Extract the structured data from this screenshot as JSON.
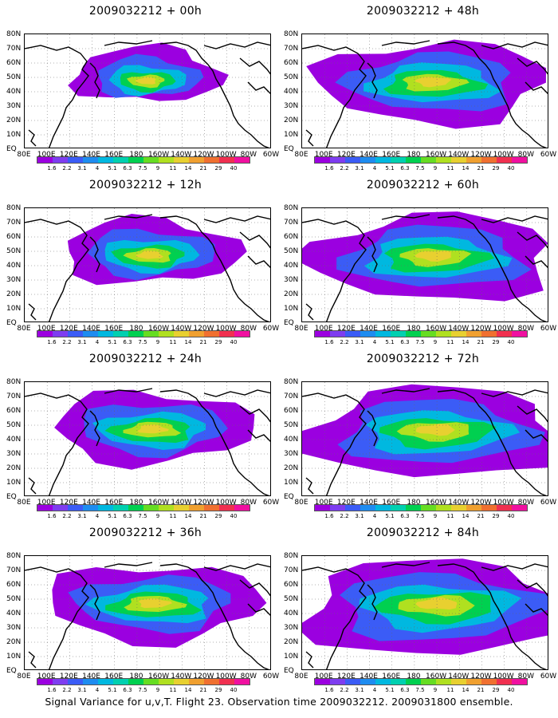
{
  "caption": "Signal Variance for u,v,T. Flight 23. Observation time 2009032212. 2009031800 ensemble.",
  "lat_labels": [
    "80N",
    "70N",
    "60N",
    "50N",
    "40N",
    "30N",
    "20N",
    "10N",
    "EQ"
  ],
  "lon_labels": [
    "80E",
    "100E",
    "120E",
    "140E",
    "160E",
    "180",
    "160W",
    "140W",
    "120W",
    "100W",
    "80W",
    "60W"
  ],
  "colorbar": {
    "labels": [
      "1.6",
      "2.2",
      "3.1",
      "4",
      "5.1",
      "6.3",
      "7.5",
      "9",
      "11",
      "14",
      "21",
      "29",
      "40"
    ],
    "colors": [
      "#9b00e0",
      "#7e3df0",
      "#3b5cf6",
      "#1e8cf0",
      "#00b8e0",
      "#00d0b0",
      "#00d050",
      "#66dd22",
      "#b0e020",
      "#e8d030",
      "#f0a030",
      "#f07030",
      "#f03050",
      "#f010a0"
    ]
  },
  "panels": [
    {
      "title": "2009032212 + 00h",
      "lead": 0,
      "col": 0,
      "row": 0,
      "level": 0.15
    },
    {
      "title": "2009032212 + 12h",
      "lead": 12,
      "col": 0,
      "row": 1,
      "level": 0.35
    },
    {
      "title": "2009032212 + 24h",
      "lead": 24,
      "col": 0,
      "row": 2,
      "level": 0.5
    },
    {
      "title": "2009032212 + 36h",
      "lead": 36,
      "col": 0,
      "row": 3,
      "level": 0.6
    },
    {
      "title": "2009032212 + 48h",
      "lead": 48,
      "col": 1,
      "row": 0,
      "level": 0.7
    },
    {
      "title": "2009032212 + 60h",
      "lead": 60,
      "col": 1,
      "row": 1,
      "level": 0.8
    },
    {
      "title": "2009032212 + 72h",
      "lead": 72,
      "col": 1,
      "row": 2,
      "level": 0.9
    },
    {
      "title": "2009032212 + 84h",
      "lead": 84,
      "col": 1,
      "row": 3,
      "level": 1.0
    }
  ]
}
